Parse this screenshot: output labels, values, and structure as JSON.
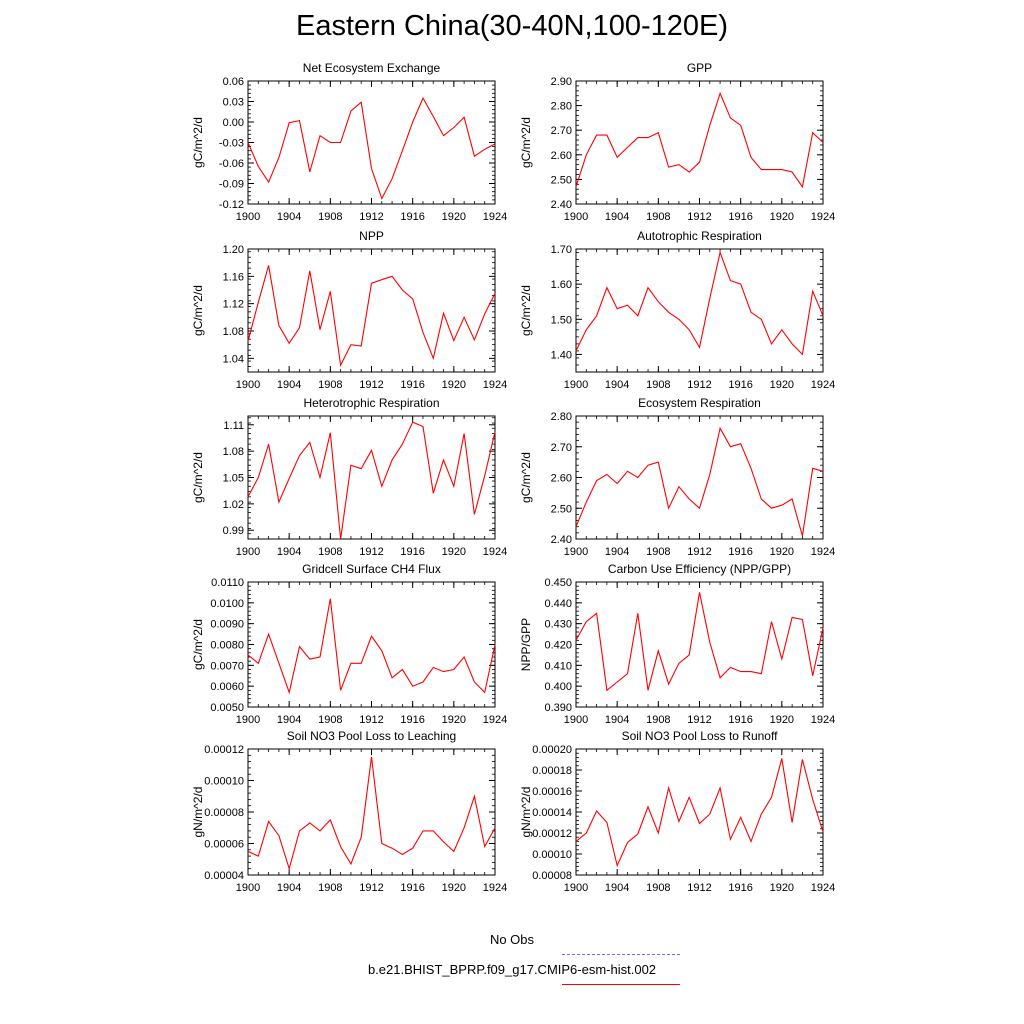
{
  "title": "Eastern China(30-40N,100-120E)",
  "legend": {
    "obs_label": "No Obs",
    "model_label": "b.e21.BHIST_BPRP.f09_g17.CMIP6-esm-hist.002",
    "obs_color": "#6a6aff",
    "model_color": "#ff0000"
  },
  "chart_data": [
    {
      "type": "line",
      "title": "Net Ecosystem Exchange",
      "ylabel": "gC/m^2/d",
      "xlabel": "",
      "xlim": [
        1900,
        1924
      ],
      "ylim": [
        -0.12,
        0.06
      ],
      "yticks": [
        "-0.12",
        "-0.09",
        "-0.06",
        "-0.03",
        "0.00",
        "0.03",
        "0.06"
      ],
      "xticks": [
        "1900",
        "1904",
        "1908",
        "1912",
        "1916",
        "1920",
        "1924"
      ],
      "series": [
        {
          "name": "b.e21.BHIST_BPRP.f09_g17.CMIP6-esm-hist.002",
          "color": "#ff0000",
          "x": [
            1900,
            1901,
            1902,
            1903,
            1904,
            1905,
            1906,
            1907,
            1908,
            1909,
            1910,
            1911,
            1912,
            1913,
            1914,
            1915,
            1916,
            1917,
            1918,
            1919,
            1920,
            1921,
            1922,
            1923,
            1924
          ],
          "values": [
            -0.03,
            -0.065,
            -0.088,
            -0.052,
            -0.001,
            0.002,
            -0.073,
            -0.02,
            -0.03,
            -0.03,
            0.016,
            0.029,
            -0.068,
            -0.112,
            -0.083,
            -0.042,
            0.0,
            0.035,
            0.008,
            -0.02,
            -0.008,
            0.007,
            -0.05,
            -0.04,
            -0.032
          ]
        }
      ]
    },
    {
      "type": "line",
      "title": "GPP",
      "ylabel": "gC/m^2/d",
      "xlabel": "",
      "xlim": [
        1900,
        1924
      ],
      "ylim": [
        2.4,
        2.9
      ],
      "yticks": [
        "2.40",
        "2.50",
        "2.60",
        "2.70",
        "2.80",
        "2.90"
      ],
      "xticks": [
        "1900",
        "1904",
        "1908",
        "1912",
        "1916",
        "1920",
        "1924"
      ],
      "series": [
        {
          "name": "b.e21.BHIST_BPRP.f09_g17.CMIP6-esm-hist.002",
          "color": "#ff0000",
          "x": [
            1900,
            1901,
            1902,
            1903,
            1904,
            1905,
            1906,
            1907,
            1908,
            1909,
            1910,
            1911,
            1912,
            1913,
            1914,
            1915,
            1916,
            1917,
            1918,
            1919,
            1920,
            1921,
            1922,
            1923,
            1924
          ],
          "values": [
            2.47,
            2.6,
            2.68,
            2.68,
            2.59,
            2.63,
            2.67,
            2.67,
            2.69,
            2.55,
            2.56,
            2.53,
            2.57,
            2.72,
            2.85,
            2.75,
            2.72,
            2.59,
            2.54,
            2.54,
            2.54,
            2.53,
            2.47,
            2.69,
            2.65
          ]
        }
      ]
    },
    {
      "type": "line",
      "title": "NPP",
      "ylabel": "gC/m^2/d",
      "xlabel": "",
      "xlim": [
        1900,
        1924
      ],
      "ylim": [
        1.02,
        1.2
      ],
      "yticks": [
        "1.04",
        "1.08",
        "1.12",
        "1.16",
        "1.20"
      ],
      "xticks": [
        "1900",
        "1904",
        "1908",
        "1912",
        "1916",
        "1920",
        "1924"
      ],
      "series": [
        {
          "name": "b.e21.BHIST_BPRP.f09_g17.CMIP6-esm-hist.002",
          "color": "#ff0000",
          "x": [
            1900,
            1901,
            1902,
            1903,
            1904,
            1905,
            1906,
            1907,
            1908,
            1909,
            1910,
            1911,
            1912,
            1913,
            1914,
            1915,
            1916,
            1917,
            1918,
            1919,
            1920,
            1921,
            1922,
            1923,
            1924
          ],
          "values": [
            1.065,
            1.122,
            1.176,
            1.088,
            1.062,
            1.085,
            1.168,
            1.082,
            1.138,
            1.03,
            1.06,
            1.058,
            1.15,
            1.155,
            1.16,
            1.14,
            1.127,
            1.078,
            1.04,
            1.106,
            1.066,
            1.1,
            1.067,
            1.105,
            1.135
          ]
        }
      ]
    },
    {
      "type": "line",
      "title": "Autotrophic Respiration",
      "ylabel": "gC/m^2/d",
      "xlabel": "",
      "xlim": [
        1900,
        1924
      ],
      "ylim": [
        1.35,
        1.7
      ],
      "yticks": [
        "1.40",
        "1.50",
        "1.60",
        "1.70"
      ],
      "xticks": [
        "1900",
        "1904",
        "1908",
        "1912",
        "1916",
        "1920",
        "1924"
      ],
      "series": [
        {
          "name": "b.e21.BHIST_BPRP.f09_g17.CMIP6-esm-hist.002",
          "color": "#ff0000",
          "x": [
            1900,
            1901,
            1902,
            1903,
            1904,
            1905,
            1906,
            1907,
            1908,
            1909,
            1910,
            1911,
            1912,
            1913,
            1914,
            1915,
            1916,
            1917,
            1918,
            1919,
            1920,
            1921,
            1922,
            1923,
            1924
          ],
          "values": [
            1.41,
            1.47,
            1.51,
            1.59,
            1.53,
            1.54,
            1.51,
            1.59,
            1.55,
            1.52,
            1.5,
            1.47,
            1.42,
            1.56,
            1.69,
            1.61,
            1.6,
            1.52,
            1.5,
            1.43,
            1.47,
            1.43,
            1.4,
            1.58,
            1.51
          ]
        }
      ]
    },
    {
      "type": "line",
      "title": "Heterotrophic Respiration",
      "ylabel": "gC/m^2/d",
      "xlabel": "",
      "xlim": [
        1900,
        1924
      ],
      "ylim": [
        0.98,
        1.12
      ],
      "yticks": [
        "0.99",
        "1.02",
        "1.05",
        "1.08",
        "1.11"
      ],
      "xticks": [
        "1900",
        "1904",
        "1908",
        "1912",
        "1916",
        "1920",
        "1924"
      ],
      "series": [
        {
          "name": "b.e21.BHIST_BPRP.f09_g17.CMIP6-esm-hist.002",
          "color": "#ff0000",
          "x": [
            1900,
            1901,
            1902,
            1903,
            1904,
            1905,
            1906,
            1907,
            1908,
            1909,
            1910,
            1911,
            1912,
            1913,
            1914,
            1915,
            1916,
            1917,
            1918,
            1919,
            1920,
            1921,
            1922,
            1923,
            1924
          ],
          "values": [
            1.028,
            1.05,
            1.088,
            1.022,
            1.049,
            1.075,
            1.09,
            1.05,
            1.101,
            0.98,
            1.064,
            1.06,
            1.081,
            1.04,
            1.07,
            1.088,
            1.113,
            1.108,
            1.032,
            1.07,
            1.04,
            1.1,
            1.008,
            1.052,
            1.102
          ]
        }
      ]
    },
    {
      "type": "line",
      "title": "Ecosystem Respiration",
      "ylabel": "gC/m^2/d",
      "xlabel": "",
      "xlim": [
        1900,
        1924
      ],
      "ylim": [
        2.4,
        2.8
      ],
      "yticks": [
        "2.40",
        "2.50",
        "2.60",
        "2.70",
        "2.80"
      ],
      "xticks": [
        "1900",
        "1904",
        "1908",
        "1912",
        "1916",
        "1920",
        "1924"
      ],
      "series": [
        {
          "name": "b.e21.BHIST_BPRP.f09_g17.CMIP6-esm-hist.002",
          "color": "#ff0000",
          "x": [
            1900,
            1901,
            1902,
            1903,
            1904,
            1905,
            1906,
            1907,
            1908,
            1909,
            1910,
            1911,
            1912,
            1913,
            1914,
            1915,
            1916,
            1917,
            1918,
            1919,
            1920,
            1921,
            1922,
            1923,
            1924
          ],
          "values": [
            2.44,
            2.52,
            2.59,
            2.61,
            2.58,
            2.62,
            2.6,
            2.64,
            2.65,
            2.5,
            2.57,
            2.53,
            2.5,
            2.61,
            2.76,
            2.7,
            2.71,
            2.63,
            2.53,
            2.5,
            2.51,
            2.53,
            2.41,
            2.63,
            2.62
          ]
        }
      ]
    },
    {
      "type": "line",
      "title": "Gridcell Surface CH4 Flux",
      "ylabel": "gC/m^2/d",
      "xlabel": "",
      "xlim": [
        1900,
        1924
      ],
      "ylim": [
        0.005,
        0.011
      ],
      "yticks": [
        "0.0050",
        "0.0060",
        "0.0070",
        "0.0080",
        "0.0090",
        "0.0100",
        "0.0110"
      ],
      "xticks": [
        "1900",
        "1904",
        "1908",
        "1912",
        "1916",
        "1920",
        "1924"
      ],
      "series": [
        {
          "name": "b.e21.BHIST_BPRP.f09_g17.CMIP6-esm-hist.002",
          "color": "#ff0000",
          "x": [
            1900,
            1901,
            1902,
            1903,
            1904,
            1905,
            1906,
            1907,
            1908,
            1909,
            1910,
            1911,
            1912,
            1913,
            1914,
            1915,
            1916,
            1917,
            1918,
            1919,
            1920,
            1921,
            1922,
            1923,
            1924
          ],
          "values": [
            0.0075,
            0.0071,
            0.0085,
            0.0071,
            0.0057,
            0.0079,
            0.0073,
            0.0074,
            0.0102,
            0.0058,
            0.0071,
            0.0071,
            0.0084,
            0.0077,
            0.0064,
            0.0068,
            0.006,
            0.0062,
            0.0069,
            0.0067,
            0.0068,
            0.0074,
            0.0062,
            0.0057,
            0.008
          ]
        }
      ]
    },
    {
      "type": "line",
      "title": "Carbon Use Efficiency (NPP/GPP)",
      "ylabel": "NPP/GPP",
      "xlabel": "",
      "xlim": [
        1900,
        1924
      ],
      "ylim": [
        0.39,
        0.45
      ],
      "yticks": [
        "0.390",
        "0.400",
        "0.410",
        "0.420",
        "0.430",
        "0.440",
        "0.450"
      ],
      "xticks": [
        "1900",
        "1904",
        "1908",
        "1912",
        "1916",
        "1920",
        "1924"
      ],
      "series": [
        {
          "name": "b.e21.BHIST_BPRP.f09_g17.CMIP6-esm-hist.002",
          "color": "#ff0000",
          "x": [
            1900,
            1901,
            1902,
            1903,
            1904,
            1905,
            1906,
            1907,
            1908,
            1909,
            1910,
            1911,
            1912,
            1913,
            1914,
            1915,
            1916,
            1917,
            1918,
            1919,
            1920,
            1921,
            1922,
            1923,
            1924
          ],
          "values": [
            0.422,
            0.431,
            0.435,
            0.398,
            0.402,
            0.406,
            0.435,
            0.398,
            0.417,
            0.401,
            0.411,
            0.415,
            0.445,
            0.421,
            0.404,
            0.409,
            0.407,
            0.407,
            0.406,
            0.431,
            0.413,
            0.433,
            0.432,
            0.405,
            0.428
          ]
        }
      ]
    },
    {
      "type": "line",
      "title": "Soil NO3 Pool Loss to Leaching",
      "ylabel": "gN/m^2/d",
      "xlabel": "",
      "xlim": [
        1900,
        1924
      ],
      "ylim": [
        4e-05,
        0.00012
      ],
      "yticks": [
        "0.00004",
        "0.00006",
        "0.00008",
        "0.00010",
        "0.00012"
      ],
      "xticks": [
        "1900",
        "1904",
        "1908",
        "1912",
        "1916",
        "1920",
        "1924"
      ],
      "series": [
        {
          "name": "b.e21.BHIST_BPRP.f09_g17.CMIP6-esm-hist.002",
          "color": "#ff0000",
          "x": [
            1900,
            1901,
            1902,
            1903,
            1904,
            1905,
            1906,
            1907,
            1908,
            1909,
            1910,
            1911,
            1912,
            1913,
            1914,
            1915,
            1916,
            1917,
            1918,
            1919,
            1920,
            1921,
            1922,
            1923,
            1924
          ],
          "values": [
            5.5e-05,
            5.2e-05,
            7.4e-05,
            6.5e-05,
            4.4e-05,
            6.8e-05,
            7.3e-05,
            6.8e-05,
            7.5e-05,
            5.8e-05,
            4.7e-05,
            6.4e-05,
            0.000115,
            6e-05,
            5.7e-05,
            5.3e-05,
            5.7e-05,
            6.8e-05,
            6.8e-05,
            6.1e-05,
            5.5e-05,
            7e-05,
            9e-05,
            5.8e-05,
            7e-05
          ]
        }
      ]
    },
    {
      "type": "line",
      "title": "Soil NO3 Pool Loss to Runoff",
      "ylabel": "gN/m^2/d",
      "xlabel": "",
      "xlim": [
        1900,
        1924
      ],
      "ylim": [
        8e-05,
        0.0002
      ],
      "yticks": [
        "0.00008",
        "0.00010",
        "0.00012",
        "0.00014",
        "0.00016",
        "0.00018",
        "0.00020"
      ],
      "xticks": [
        "1900",
        "1904",
        "1908",
        "1912",
        "1916",
        "1920",
        "1924"
      ],
      "series": [
        {
          "name": "b.e21.BHIST_BPRP.f09_g17.CMIP6-esm-hist.002",
          "color": "#ff0000",
          "x": [
            1900,
            1901,
            1902,
            1903,
            1904,
            1905,
            1906,
            1907,
            1908,
            1909,
            1910,
            1911,
            1912,
            1913,
            1914,
            1915,
            1916,
            1917,
            1918,
            1919,
            1920,
            1921,
            1922,
            1923,
            1924
          ],
          "values": [
            0.000112,
            0.00012,
            0.000141,
            0.00013,
            8.9e-05,
            0.000111,
            0.000119,
            0.000145,
            0.00012,
            0.000163,
            0.000131,
            0.000154,
            0.000129,
            0.000138,
            0.000163,
            0.000114,
            0.000135,
            0.000112,
            0.000138,
            0.000154,
            0.000191,
            0.00013,
            0.00019,
            0.000152,
            0.000121
          ]
        }
      ]
    }
  ]
}
